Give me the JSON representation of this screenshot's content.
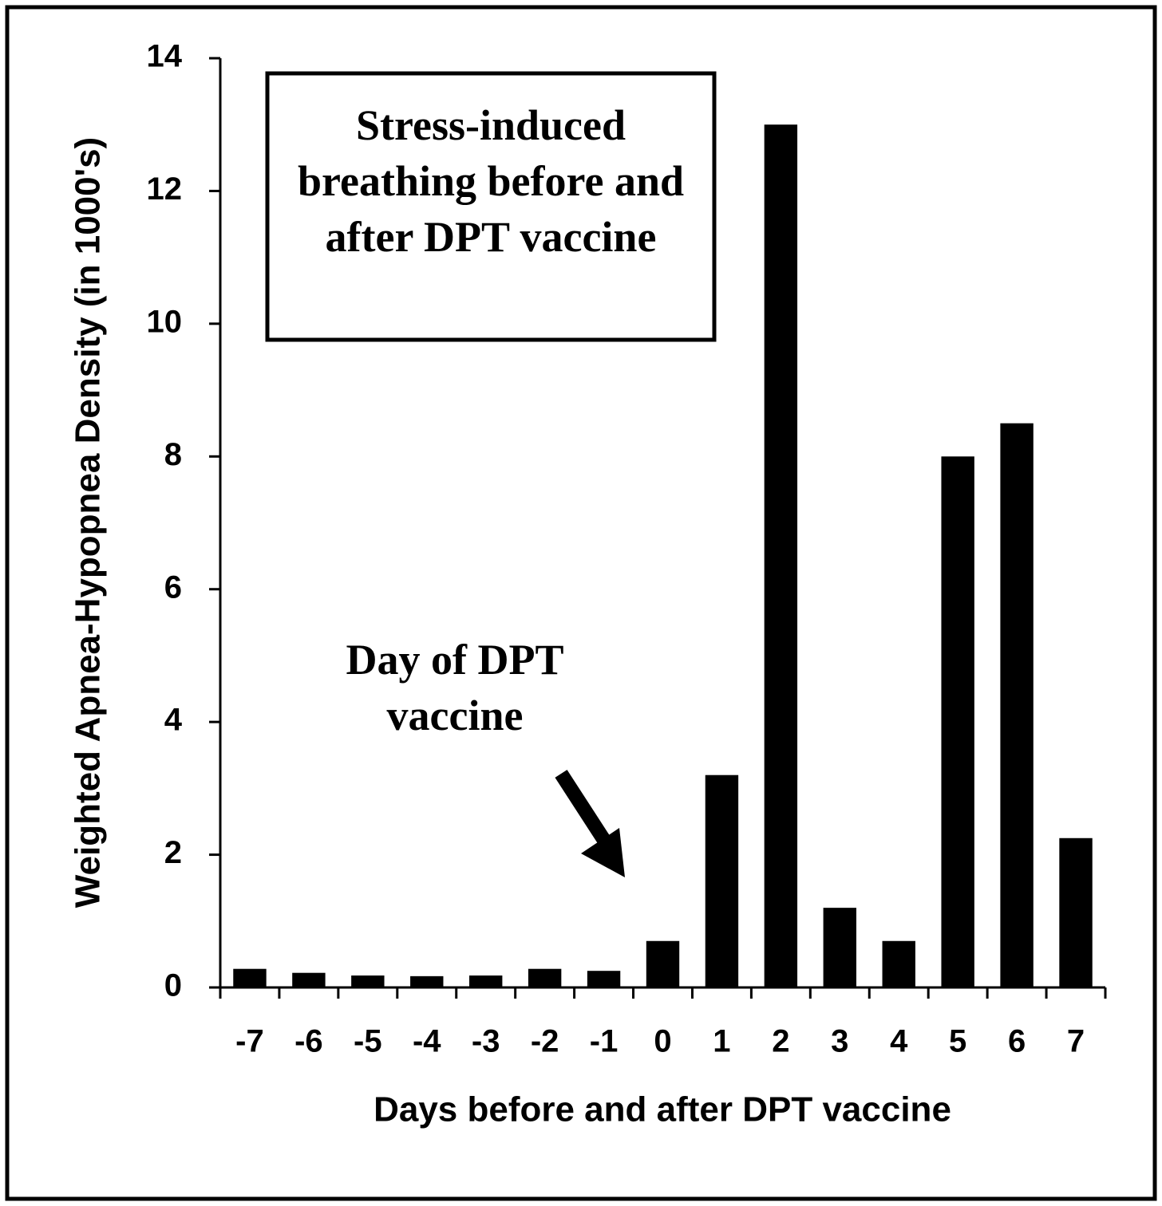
{
  "chart_data": {
    "type": "bar",
    "title": "Stress-induced breathing before and after DPT vaccine",
    "annotation": "Day of DPT vaccine",
    "x_label": "Days before and after DPT vaccine",
    "y_label": "Weighted Apnea-Hypopnea Density (in 1000's)",
    "categories": [
      "-7",
      "-6",
      "-5",
      "-4",
      "-3",
      "-2",
      "-1",
      "0",
      "1",
      "2",
      "3",
      "4",
      "5",
      "6",
      "7"
    ],
    "values": [
      0.28,
      0.22,
      0.18,
      0.17,
      0.18,
      0.28,
      0.25,
      0.7,
      3.2,
      13,
      1.2,
      0.7,
      8,
      8.5,
      2.25
    ],
    "color": "#000000",
    "ylim": [
      0,
      14
    ],
    "yticks": [
      0,
      2,
      4,
      6,
      8,
      10,
      12,
      14
    ],
    "grid": false
  }
}
